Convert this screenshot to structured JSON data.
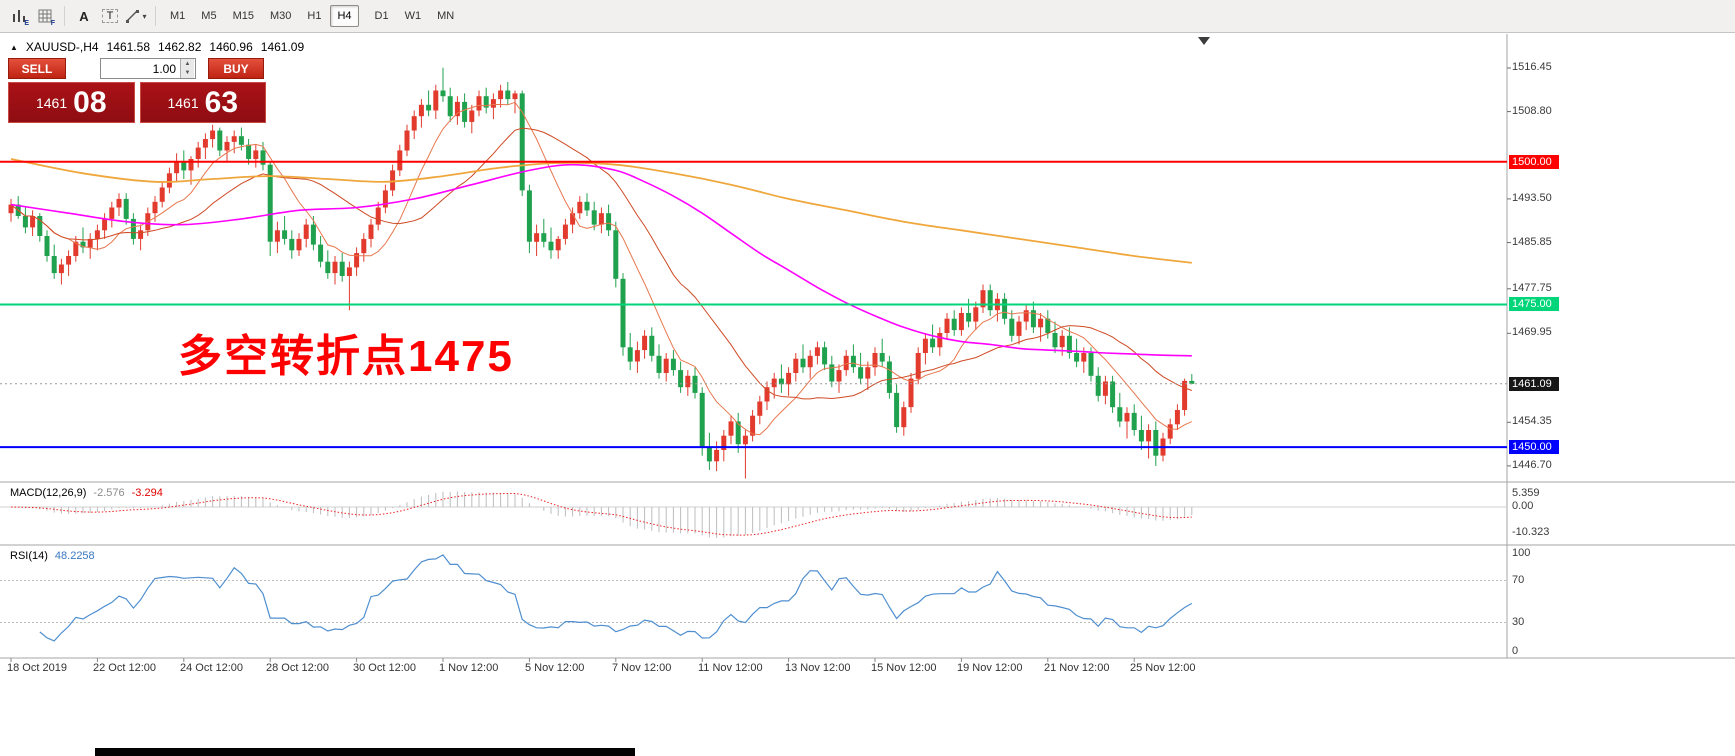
{
  "toolbar": {
    "icon_e_sub": "E",
    "icon_f_sub": "F",
    "tool_a": "A",
    "tool_t": "T",
    "caret": "▾",
    "timeframes": [
      "M1",
      "M5",
      "M15",
      "M30",
      "H1",
      "H4",
      "D1",
      "W1",
      "MN"
    ],
    "active_timeframe": "H4"
  },
  "chart_header": {
    "collapse_icon": "▲",
    "symbol": "XAUUSD-,H4",
    "open": "1461.58",
    "high": "1462.82",
    "low": "1460.96",
    "close": "1461.09"
  },
  "trade_panel": {
    "sell_label": "SELL",
    "buy_label": "BUY",
    "volume": "1.00",
    "spin_up_icon": "▲",
    "spin_down_icon": "▼",
    "sell_price": {
      "base": "1461",
      "pips": "08"
    },
    "buy_price": {
      "base": "1461",
      "pips": "63"
    }
  },
  "annotation": {
    "text": "多空转折点1475",
    "color": "#ff0000"
  },
  "price_axis": {
    "labels": [
      "1516.45",
      "1508.80",
      "1493.50",
      "1485.85",
      "1477.75",
      "1469.95",
      "1454.35",
      "1446.70"
    ],
    "tagged": [
      {
        "text": "1500.00",
        "price": 1500.0,
        "color": "#fe0000",
        "text_color": "#ffffff"
      },
      {
        "text": "1475.00",
        "price": 1475.0,
        "color": "#00d57a",
        "text_color": "#ffffff"
      },
      {
        "text": "1461.09",
        "price": 1461.09,
        "color": "#161616",
        "text_color": "#ffffff"
      },
      {
        "text": "1450.00",
        "price": 1450.0,
        "color": "#0000fe",
        "text_color": "#ffffff"
      }
    ]
  },
  "time_axis": [
    {
      "label": "18 Oct 2019",
      "idx": 0
    },
    {
      "label": "22 Oct 12:00",
      "idx": 12
    },
    {
      "label": "24 Oct 12:00",
      "idx": 24
    },
    {
      "label": "28 Oct 12:00",
      "idx": 36
    },
    {
      "label": "30 Oct 12:00",
      "idx": 48
    },
    {
      "label": "1 Nov 12:00",
      "idx": 60
    },
    {
      "label": "5 Nov 12:00",
      "idx": 72
    },
    {
      "label": "7 Nov 12:00",
      "idx": 84
    },
    {
      "label": "11 Nov 12:00",
      "idx": 96
    },
    {
      "label": "13 Nov 12:00",
      "idx": 108
    },
    {
      "label": "15 Nov 12:00",
      "idx": 120
    },
    {
      "label": "19 Nov 12:00",
      "idx": 132
    },
    {
      "label": "21 Nov 12:00",
      "idx": 144
    },
    {
      "label": "25 Nov 12:00",
      "idx": 156
    }
  ],
  "indicators": {
    "macd": {
      "title": "MACD(12,26,9)",
      "value": "-2.576",
      "signal": "-3.294",
      "axis": [
        "5.359",
        "0.00",
        "-10.323"
      ]
    },
    "rsi": {
      "title": "RSI(14)",
      "value": "48.2258",
      "axis": [
        "100",
        "70",
        "30",
        "0"
      ],
      "levels": [
        70,
        30
      ]
    }
  },
  "chart_data": {
    "type": "candlestick",
    "symbol": "XAUUSD",
    "timeframe": "H4",
    "current_price": 1461.09,
    "colors": {
      "bull": "#e23b2e",
      "bear": "#1fa14d",
      "ma_slow": "#efa73c",
      "ma_mid": "#ff00ff",
      "ma_fast1": "#e8774e",
      "ma_fast2": "#cf4a24",
      "rsi": "#4f8fd0",
      "macd_hist": "#bdbdbd",
      "macd_signal": "#f02020"
    },
    "hlines": [
      {
        "price": 1500.0,
        "color": "#fe0000"
      },
      {
        "price": 1475.0,
        "color": "#00d57a"
      },
      {
        "price": 1450.0,
        "color": "#0000fe"
      }
    ],
    "fast_ma_periods": [
      9,
      22
    ],
    "ma_slow_anchors": [
      [
        0,
        1500.5
      ],
      [
        10,
        1498.0
      ],
      [
        20,
        1496.5
      ],
      [
        28,
        1497.0
      ],
      [
        36,
        1497.5
      ],
      [
        44,
        1497.0
      ],
      [
        52,
        1496.5
      ],
      [
        60,
        1497.5
      ],
      [
        68,
        1499.0
      ],
      [
        76,
        1499.8
      ],
      [
        84,
        1499.5
      ],
      [
        92,
        1498.0
      ],
      [
        100,
        1496.0
      ],
      [
        108,
        1493.5
      ],
      [
        116,
        1491.5
      ],
      [
        124,
        1489.5
      ],
      [
        132,
        1488.0
      ],
      [
        140,
        1486.5
      ],
      [
        148,
        1485.0
      ],
      [
        156,
        1483.5
      ],
      [
        164,
        1482.3
      ]
    ],
    "ma_mid_anchors": [
      [
        0,
        1492.5
      ],
      [
        8,
        1491.0
      ],
      [
        16,
        1489.5
      ],
      [
        24,
        1489.0
      ],
      [
        32,
        1490.0
      ],
      [
        40,
        1491.5
      ],
      [
        48,
        1492.0
      ],
      [
        56,
        1493.5
      ],
      [
        64,
        1496.0
      ],
      [
        72,
        1498.5
      ],
      [
        78,
        1499.5
      ],
      [
        84,
        1498.5
      ],
      [
        88,
        1496.5
      ],
      [
        92,
        1494.0
      ],
      [
        96,
        1491.0
      ],
      [
        100,
        1487.5
      ],
      [
        104,
        1484.0
      ],
      [
        108,
        1481.0
      ],
      [
        112,
        1478.0
      ],
      [
        116,
        1475.3
      ],
      [
        120,
        1473.0
      ],
      [
        124,
        1471.0
      ],
      [
        128,
        1469.5
      ],
      [
        132,
        1468.5
      ],
      [
        136,
        1468.0
      ],
      [
        140,
        1467.3
      ],
      [
        144,
        1467.0
      ],
      [
        148,
        1466.8
      ],
      [
        152,
        1466.5
      ],
      [
        156,
        1466.3
      ],
      [
        160,
        1466.1
      ],
      [
        164,
        1466.0
      ]
    ],
    "candles": [
      [
        1491.0,
        1493.5,
        1489.5,
        1492.5
      ],
      [
        1492.5,
        1494.0,
        1490.0,
        1490.5
      ],
      [
        1490.5,
        1492.0,
        1487.5,
        1488.5
      ],
      [
        1488.5,
        1491.5,
        1487.0,
        1490.5
      ],
      [
        1490.5,
        1491.0,
        1486.0,
        1487.0
      ],
      [
        1487.0,
        1488.0,
        1482.5,
        1483.5
      ],
      [
        1483.5,
        1485.5,
        1479.5,
        1480.5
      ],
      [
        1480.5,
        1483.0,
        1478.5,
        1482.0
      ],
      [
        1482.0,
        1484.5,
        1480.0,
        1483.5
      ],
      [
        1483.5,
        1487.0,
        1482.5,
        1486.0
      ],
      [
        1486.0,
        1488.5,
        1484.0,
        1485.0
      ],
      [
        1485.0,
        1487.5,
        1483.0,
        1486.5
      ],
      [
        1486.5,
        1489.0,
        1484.5,
        1488.0
      ],
      [
        1488.0,
        1491.0,
        1486.5,
        1490.0
      ],
      [
        1490.0,
        1493.0,
        1488.5,
        1492.0
      ],
      [
        1492.0,
        1494.5,
        1490.5,
        1493.5
      ],
      [
        1493.5,
        1494.5,
        1489.0,
        1490.0
      ],
      [
        1490.0,
        1491.0,
        1485.5,
        1486.5
      ],
      [
        1486.5,
        1489.0,
        1484.5,
        1488.0
      ],
      [
        1488.0,
        1492.0,
        1487.0,
        1491.0
      ],
      [
        1491.0,
        1494.0,
        1489.5,
        1493.0
      ],
      [
        1493.0,
        1496.5,
        1492.0,
        1495.5
      ],
      [
        1495.5,
        1499.0,
        1494.5,
        1498.0
      ],
      [
        1498.0,
        1501.5,
        1496.5,
        1500.0
      ],
      [
        1500.0,
        1502.0,
        1497.0,
        1498.5
      ],
      [
        1498.5,
        1501.0,
        1496.0,
        1500.5
      ],
      [
        1500.5,
        1503.5,
        1499.0,
        1502.5
      ],
      [
        1502.5,
        1505.0,
        1500.5,
        1504.0
      ],
      [
        1504.0,
        1506.5,
        1502.5,
        1505.5
      ],
      [
        1505.5,
        1506.0,
        1501.0,
        1502.0
      ],
      [
        1502.0,
        1504.5,
        1500.0,
        1503.5
      ],
      [
        1503.5,
        1505.5,
        1501.5,
        1504.5
      ],
      [
        1504.5,
        1506.0,
        1502.0,
        1503.0
      ],
      [
        1503.0,
        1504.0,
        1499.5,
        1500.5
      ],
      [
        1500.5,
        1503.0,
        1499.0,
        1502.0
      ],
      [
        1502.0,
        1503.5,
        1498.5,
        1499.5
      ],
      [
        1499.5,
        1500.0,
        1483.5,
        1486.0
      ],
      [
        1486.0,
        1489.5,
        1484.0,
        1488.0
      ],
      [
        1488.0,
        1490.5,
        1485.5,
        1486.5
      ],
      [
        1486.5,
        1488.0,
        1483.0,
        1484.5
      ],
      [
        1484.5,
        1487.5,
        1483.5,
        1486.5
      ],
      [
        1486.5,
        1490.0,
        1485.0,
        1489.0
      ],
      [
        1489.0,
        1490.5,
        1484.5,
        1485.5
      ],
      [
        1485.5,
        1487.0,
        1481.5,
        1482.5
      ],
      [
        1482.5,
        1484.5,
        1479.5,
        1480.5
      ],
      [
        1480.5,
        1483.5,
        1478.5,
        1482.5
      ],
      [
        1482.5,
        1484.0,
        1479.0,
        1480.0
      ],
      [
        1480.0,
        1482.5,
        1474.0,
        1481.5
      ],
      [
        1481.5,
        1485.0,
        1480.0,
        1484.0
      ],
      [
        1484.0,
        1487.5,
        1482.5,
        1486.5
      ],
      [
        1486.5,
        1490.0,
        1485.0,
        1489.0
      ],
      [
        1489.0,
        1493.0,
        1488.0,
        1492.0
      ],
      [
        1492.0,
        1496.0,
        1491.0,
        1495.0
      ],
      [
        1495.0,
        1499.5,
        1494.0,
        1498.5
      ],
      [
        1498.5,
        1503.0,
        1497.5,
        1502.0
      ],
      [
        1502.0,
        1506.5,
        1501.0,
        1505.5
      ],
      [
        1505.5,
        1509.0,
        1504.0,
        1508.0
      ],
      [
        1508.0,
        1511.0,
        1506.0,
        1510.0
      ],
      [
        1510.0,
        1512.5,
        1508.0,
        1509.0
      ],
      [
        1509.0,
        1513.5,
        1507.5,
        1512.5
      ],
      [
        1512.5,
        1516.5,
        1510.5,
        1511.5
      ],
      [
        1511.5,
        1513.0,
        1507.0,
        1508.0
      ],
      [
        1508.0,
        1511.5,
        1506.5,
        1510.5
      ],
      [
        1510.5,
        1512.0,
        1506.0,
        1507.0
      ],
      [
        1507.0,
        1510.0,
        1505.0,
        1509.0
      ],
      [
        1509.0,
        1512.5,
        1508.0,
        1511.5
      ],
      [
        1511.5,
        1513.0,
        1508.5,
        1509.5
      ],
      [
        1509.5,
        1512.0,
        1507.5,
        1511.0
      ],
      [
        1511.0,
        1513.5,
        1509.5,
        1512.5
      ],
      [
        1512.5,
        1514.0,
        1510.0,
        1511.0
      ],
      [
        1511.0,
        1512.5,
        1508.5,
        1512.0
      ],
      [
        1512.0,
        1512.5,
        1494.0,
        1495.0
      ],
      [
        1495.0,
        1496.0,
        1484.0,
        1486.0
      ],
      [
        1486.0,
        1489.0,
        1483.5,
        1487.5
      ],
      [
        1487.5,
        1490.0,
        1485.0,
        1486.0
      ],
      [
        1486.0,
        1488.5,
        1483.0,
        1484.5
      ],
      [
        1484.5,
        1487.0,
        1483.0,
        1486.5
      ],
      [
        1486.5,
        1490.0,
        1485.5,
        1489.0
      ],
      [
        1489.0,
        1492.0,
        1487.5,
        1491.0
      ],
      [
        1491.0,
        1494.0,
        1490.0,
        1493.0
      ],
      [
        1493.0,
        1494.5,
        1490.5,
        1491.5
      ],
      [
        1491.5,
        1493.0,
        1488.0,
        1489.0
      ],
      [
        1489.0,
        1492.0,
        1487.5,
        1491.0
      ],
      [
        1491.0,
        1492.5,
        1487.0,
        1488.0
      ],
      [
        1488.0,
        1489.5,
        1478.0,
        1479.5
      ],
      [
        1479.5,
        1480.5,
        1466.0,
        1467.5
      ],
      [
        1467.5,
        1470.0,
        1463.5,
        1465.0
      ],
      [
        1465.0,
        1468.5,
        1463.0,
        1467.0
      ],
      [
        1467.0,
        1470.5,
        1465.5,
        1469.5
      ],
      [
        1469.5,
        1471.0,
        1465.0,
        1466.0
      ],
      [
        1466.0,
        1468.0,
        1462.0,
        1463.0
      ],
      [
        1463.0,
        1466.5,
        1461.5,
        1465.5
      ],
      [
        1465.5,
        1467.0,
        1462.5,
        1463.5
      ],
      [
        1463.5,
        1465.0,
        1459.5,
        1460.5
      ],
      [
        1460.5,
        1463.5,
        1459.0,
        1462.5
      ],
      [
        1462.5,
        1464.0,
        1458.5,
        1459.5
      ],
      [
        1459.5,
        1460.5,
        1448.5,
        1450.0
      ],
      [
        1450.0,
        1452.5,
        1446.0,
        1447.5
      ],
      [
        1447.5,
        1451.0,
        1445.8,
        1449.5
      ],
      [
        1449.5,
        1453.0,
        1447.5,
        1452.0
      ],
      [
        1452.0,
        1455.5,
        1450.5,
        1454.5
      ],
      [
        1454.5,
        1456.0,
        1449.0,
        1450.5
      ],
      [
        1450.5,
        1453.0,
        1444.5,
        1452.0
      ],
      [
        1452.0,
        1456.5,
        1451.0,
        1455.5
      ],
      [
        1455.5,
        1459.0,
        1454.0,
        1458.0
      ],
      [
        1458.0,
        1461.5,
        1456.5,
        1460.5
      ],
      [
        1460.5,
        1463.0,
        1458.5,
        1462.0
      ],
      [
        1462.0,
        1464.5,
        1459.5,
        1461.0
      ],
      [
        1461.0,
        1464.0,
        1459.0,
        1463.0
      ],
      [
        1463.0,
        1466.5,
        1461.5,
        1465.5
      ],
      [
        1465.5,
        1468.0,
        1463.0,
        1464.0
      ],
      [
        1464.0,
        1467.0,
        1462.0,
        1466.0
      ],
      [
        1466.0,
        1468.5,
        1464.5,
        1467.5
      ],
      [
        1467.5,
        1468.5,
        1463.5,
        1464.5
      ],
      [
        1464.5,
        1466.0,
        1460.5,
        1461.5
      ],
      [
        1461.5,
        1464.5,
        1459.5,
        1463.5
      ],
      [
        1463.5,
        1467.0,
        1462.5,
        1466.0
      ],
      [
        1466.0,
        1468.0,
        1463.0,
        1464.0
      ],
      [
        1464.0,
        1466.5,
        1461.0,
        1462.0
      ],
      [
        1462.0,
        1465.0,
        1460.0,
        1464.0
      ],
      [
        1464.0,
        1467.5,
        1462.5,
        1466.5
      ],
      [
        1466.5,
        1469.0,
        1464.0,
        1465.0
      ],
      [
        1465.0,
        1466.0,
        1458.5,
        1459.5
      ],
      [
        1459.5,
        1461.0,
        1452.5,
        1453.5
      ],
      [
        1453.5,
        1458.0,
        1452.0,
        1457.0
      ],
      [
        1457.0,
        1463.0,
        1456.0,
        1462.0
      ],
      [
        1462.0,
        1467.5,
        1461.0,
        1466.5
      ],
      [
        1466.5,
        1470.0,
        1464.5,
        1469.0
      ],
      [
        1469.0,
        1471.5,
        1466.5,
        1467.5
      ],
      [
        1467.5,
        1471.0,
        1466.0,
        1470.0
      ],
      [
        1470.0,
        1473.5,
        1469.0,
        1472.5
      ],
      [
        1472.5,
        1474.0,
        1469.5,
        1470.5
      ],
      [
        1470.5,
        1474.5,
        1469.5,
        1473.5
      ],
      [
        1473.5,
        1476.0,
        1471.0,
        1472.0
      ],
      [
        1472.0,
        1475.5,
        1470.5,
        1474.5
      ],
      [
        1474.5,
        1478.5,
        1473.5,
        1477.5
      ],
      [
        1477.5,
        1478.5,
        1473.0,
        1474.0
      ],
      [
        1474.0,
        1477.0,
        1472.0,
        1476.0
      ],
      [
        1476.0,
        1477.0,
        1471.5,
        1472.5
      ],
      [
        1472.5,
        1474.0,
        1468.5,
        1469.5
      ],
      [
        1469.5,
        1473.0,
        1468.0,
        1472.0
      ],
      [
        1472.0,
        1475.0,
        1470.5,
        1474.0
      ],
      [
        1474.0,
        1475.5,
        1470.0,
        1471.0
      ],
      [
        1471.0,
        1473.5,
        1468.5,
        1472.5
      ],
      [
        1472.5,
        1474.0,
        1469.0,
        1470.0
      ],
      [
        1470.0,
        1472.0,
        1466.5,
        1467.5
      ],
      [
        1467.5,
        1470.5,
        1466.0,
        1469.5
      ],
      [
        1469.5,
        1471.0,
        1465.5,
        1466.5
      ],
      [
        1466.5,
        1469.0,
        1464.0,
        1465.0
      ],
      [
        1465.0,
        1467.5,
        1463.0,
        1466.5
      ],
      [
        1466.5,
        1467.5,
        1461.5,
        1462.5
      ],
      [
        1462.5,
        1464.0,
        1458.0,
        1459.0
      ],
      [
        1459.0,
        1462.5,
        1457.5,
        1461.5
      ],
      [
        1461.5,
        1462.5,
        1456.0,
        1457.0
      ],
      [
        1457.0,
        1459.5,
        1453.5,
        1454.5
      ],
      [
        1454.5,
        1457.0,
        1451.5,
        1456.0
      ],
      [
        1456.0,
        1457.5,
        1452.0,
        1453.0
      ],
      [
        1453.0,
        1455.5,
        1449.5,
        1451.0
      ],
      [
        1451.0,
        1454.0,
        1448.0,
        1453.0
      ],
      [
        1453.0,
        1454.5,
        1446.7,
        1448.5
      ],
      [
        1448.5,
        1452.5,
        1447.5,
        1451.5
      ],
      [
        1451.5,
        1455.0,
        1450.5,
        1454.0
      ],
      [
        1454.0,
        1457.5,
        1453.0,
        1456.5
      ],
      [
        1456.5,
        1462.0,
        1455.5,
        1461.6
      ],
      [
        1461.6,
        1462.8,
        1461.0,
        1461.1
      ]
    ]
  }
}
